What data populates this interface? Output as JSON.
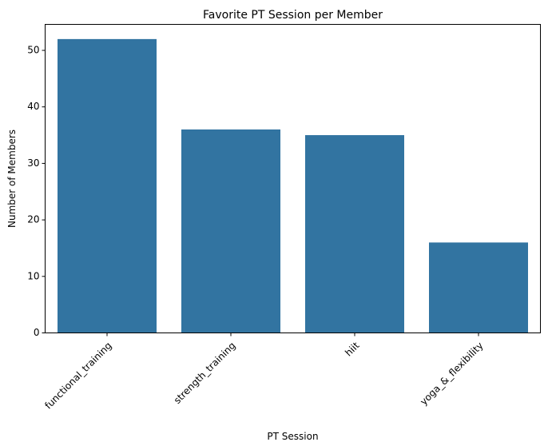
{
  "chart_data": {
    "type": "bar",
    "title": "Favorite PT Session per Member",
    "xlabel": "PT Session",
    "ylabel": "Number of Members",
    "categories": [
      "functional_training",
      "strength_training",
      "hiit",
      "yoga_&_flexibility"
    ],
    "values": [
      52,
      36,
      35,
      16
    ],
    "ylim": [
      0,
      54.6
    ],
    "yticks": [
      0,
      10,
      20,
      30,
      40,
      50
    ],
    "xtick_rotation": 45,
    "grid": false,
    "bar_color": "#3274a1"
  }
}
